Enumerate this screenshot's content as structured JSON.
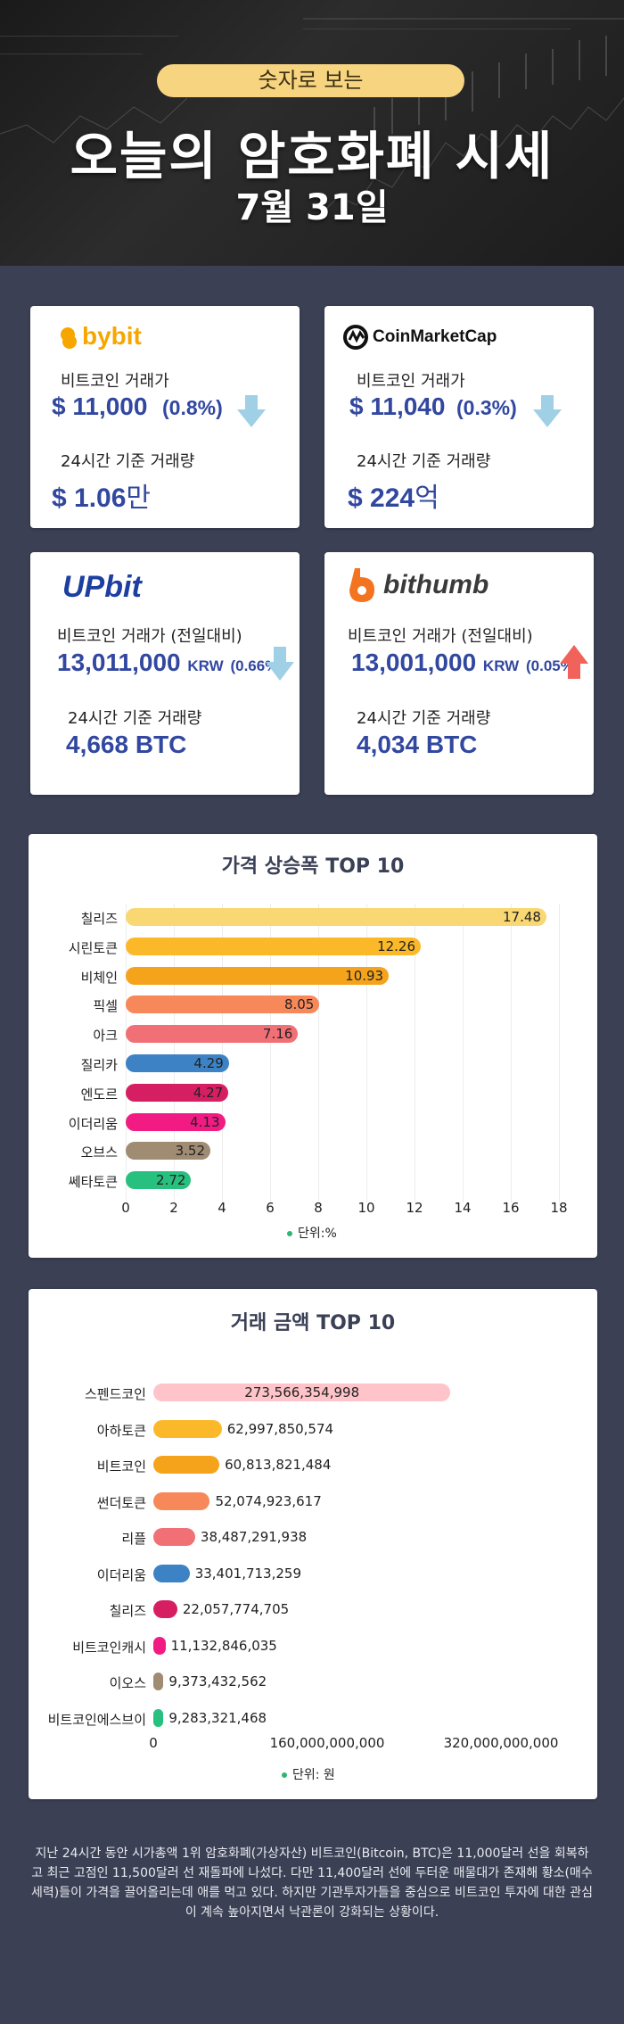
{
  "header": {
    "pill": "숫자로 보는",
    "title": "오늘의 암호화폐 시세",
    "date": "7월 31일"
  },
  "exchanges": {
    "bybit": {
      "logo": "bybit",
      "price_label": "비트코인 거래가",
      "price": "$ 11,000",
      "change": "(0.8%)",
      "direction": "down",
      "volume_label": "24시간 기준 거래량",
      "volume_num": "$ 1.06",
      "volume_unit": "만"
    },
    "coinmarketcap": {
      "logo": "CoinMarketCap",
      "price_label": "비트코인 거래가",
      "price": "$ 11,040",
      "change": "(0.3%)",
      "direction": "down",
      "volume_label": "24시간 기준 거래량",
      "volume_num": "$ 224",
      "volume_unit": "억"
    },
    "upbit": {
      "logo": "UPbit",
      "price_label": "비트코인 거래가 (전일대비)",
      "price": "13,011,000",
      "price_unit": "KRW",
      "change": "(0.66%)",
      "direction": "down",
      "volume_label": "24시간 기준 거래량",
      "volume": "4,668 BTC"
    },
    "bithumb": {
      "logo": "bithumb",
      "price_label": "비트코인 거래가 (전일대비)",
      "price": "13,001,000",
      "price_unit": "KRW",
      "change": "(0.05%)",
      "direction": "up",
      "volume_label": "24시간 기준 거래량",
      "volume": "4,034 BTC"
    }
  },
  "colors": {
    "down_arrow": "#9fd0e6",
    "up_arrow": "#f0625a",
    "accent_blue": "#3248a0",
    "background": "#3b4054"
  },
  "chart_data": [
    {
      "type": "bar",
      "orientation": "horizontal",
      "title": "가격 상승폭 TOP 10",
      "categories": [
        "칠리즈",
        "시린토큰",
        "비체인",
        "픽셀",
        "아크",
        "질리카",
        "엔도르",
        "이더리움",
        "오브스",
        "쎄타토큰"
      ],
      "values": [
        17.48,
        12.26,
        10.93,
        8.05,
        7.16,
        4.29,
        4.27,
        4.13,
        3.52,
        2.72
      ],
      "value_labels": [
        "17.48",
        "12.26",
        "10.93",
        "8.05",
        "7.16",
        "4.29",
        "4.27",
        "4.13",
        "3.52",
        "2.72"
      ],
      "colors": [
        "#f9d773",
        "#fbb929",
        "#f6a31c",
        "#f7885a",
        "#f07075",
        "#3c82c4",
        "#d61e63",
        "#f21b83",
        "#a08b73",
        "#27c07f"
      ],
      "xlim": [
        0,
        18
      ],
      "xticks": [
        "0",
        "2",
        "4",
        "6",
        "8",
        "10",
        "12",
        "14",
        "16",
        "18"
      ],
      "grid": true,
      "legend": "단위:%"
    },
    {
      "type": "bar",
      "orientation": "horizontal",
      "title": "거래 금액 TOP 10",
      "categories": [
        "스펜드코인",
        "아하토큰",
        "비트코인",
        "썬더토큰",
        "리플",
        "이더리움",
        "칠리즈",
        "비트코인캐시",
        "이오스",
        "비트코인에스브이"
      ],
      "values": [
        273566354998,
        62997850574,
        60813821484,
        52074923617,
        38487291938,
        33401713259,
        22057774705,
        11132846035,
        9373432562,
        9283321468
      ],
      "value_labels": [
        "273,566,354,998",
        "62,997,850,574",
        "60,813,821,484",
        "52,074,923,617",
        "38,487,291,938",
        "33,401,713,259",
        "22,057,774,705",
        "11,132,846,035",
        "9,373,432,562",
        "9,283,321,468"
      ],
      "colors": [
        "#ffc4c9",
        "#fbb929",
        "#f6a31c",
        "#f7885a",
        "#f07075",
        "#3c82c4",
        "#d61e63",
        "#f21b83",
        "#a08b73",
        "#27c07f"
      ],
      "xlim": [
        0,
        320000000000
      ],
      "xticks": [
        "0",
        "160,000,000,000",
        "320,000,000,000"
      ],
      "grid": false,
      "legend": "단위: 원"
    }
  ],
  "summary": "지난 24시간 동안 시가총액 1위 암호화폐(가상자산) 비트코인(Bitcoin, BTC)은 11,000달러 선을 회복하고 최근 고점인 11,500달러 선 재돌파에 나섰다. 다만 11,400달러 선에 두터운 매물대가 존재해 황소(매수 세력)들이 가격을 끌어올리는데 애를 먹고 있다. 하지만 기관투자가들을 중심으로 비트코인 투자에 대한 관심이 계속 높아지면서 낙관론이 강화되는 상황이다."
}
